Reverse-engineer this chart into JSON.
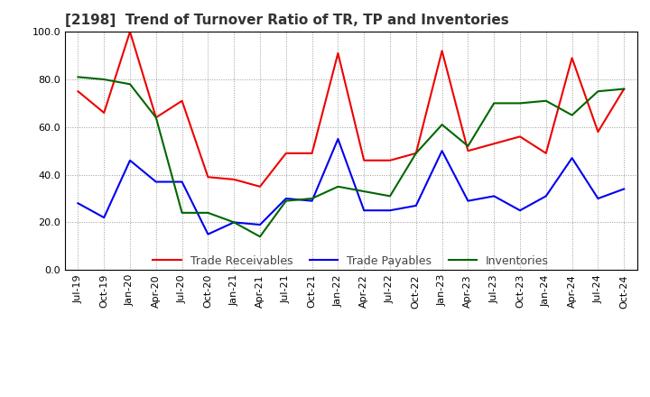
{
  "title": "[2198]  Trend of Turnover Ratio of TR, TP and Inventories",
  "x_labels": [
    "Jul-19",
    "Oct-19",
    "Jan-20",
    "Apr-20",
    "Jul-20",
    "Oct-20",
    "Jan-21",
    "Apr-21",
    "Jul-21",
    "Oct-21",
    "Jan-22",
    "Apr-22",
    "Jul-22",
    "Oct-22",
    "Jan-23",
    "Apr-23",
    "Jul-23",
    "Oct-23",
    "Jan-24",
    "Apr-24",
    "Jul-24",
    "Oct-24"
  ],
  "trade_receivables": [
    75,
    66,
    100,
    64,
    71,
    39,
    38,
    35,
    49,
    49,
    91,
    46,
    46,
    49,
    92,
    50,
    53,
    56,
    49,
    89,
    58,
    76
  ],
  "trade_payables": [
    28,
    22,
    46,
    37,
    37,
    15,
    20,
    19,
    30,
    29,
    55,
    25,
    25,
    27,
    50,
    29,
    31,
    25,
    31,
    47,
    30,
    34
  ],
  "inventories": [
    81,
    80,
    78,
    64,
    24,
    24,
    20,
    14,
    29,
    30,
    35,
    33,
    31,
    49,
    61,
    52,
    70,
    70,
    71,
    65,
    75,
    76
  ],
  "ylim": [
    0,
    100
  ],
  "yticks": [
    0.0,
    20.0,
    40.0,
    60.0,
    80.0,
    100.0
  ],
  "line_colors": {
    "trade_receivables": "#ee0000",
    "trade_payables": "#0000ee",
    "inventories": "#006600"
  },
  "legend_labels": [
    "Trade Receivables",
    "Trade Payables",
    "Inventories"
  ],
  "background_color": "#ffffff",
  "grid_color": "#999999",
  "line_width": 1.5,
  "title_fontsize": 11,
  "tick_fontsize": 8,
  "legend_fontsize": 9
}
